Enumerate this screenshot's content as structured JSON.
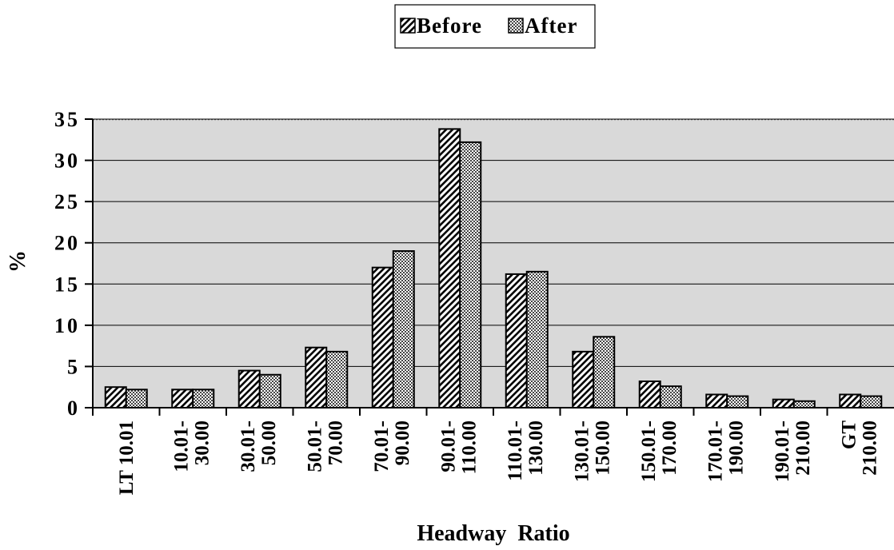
{
  "chart_data": {
    "type": "bar",
    "title": "",
    "xlabel": "Headway  Ratio",
    "ylabel": "%",
    "ylim": [
      0,
      35
    ],
    "yticks": [
      0,
      5,
      10,
      15,
      20,
      25,
      30,
      35
    ],
    "grid": true,
    "legend_position": "top-center",
    "categories": [
      [
        "LT 10.01"
      ],
      [
        "10.01-",
        "30.00"
      ],
      [
        "30.01-",
        "50.00"
      ],
      [
        "50.01-",
        "70.00"
      ],
      [
        "70.01-",
        "90.00"
      ],
      [
        "90.01-",
        "110.00"
      ],
      [
        "110.01-",
        "130.00"
      ],
      [
        "130.01-",
        "150.00"
      ],
      [
        "150.01-",
        "170.00"
      ],
      [
        "170.01-",
        "190.00"
      ],
      [
        "190.01-",
        "210.00"
      ],
      [
        "GT",
        "210.00"
      ]
    ],
    "series": [
      {
        "name": "Before",
        "pattern": "diagonal-hatch",
        "values": [
          2.5,
          2.2,
          4.5,
          7.3,
          17.0,
          33.8,
          16.2,
          6.8,
          3.2,
          1.6,
          1.0,
          1.6
        ]
      },
      {
        "name": "After",
        "pattern": "crosshatch",
        "values": [
          2.2,
          2.2,
          4.0,
          6.8,
          19.0,
          32.2,
          16.5,
          8.6,
          2.6,
          1.4,
          0.8,
          1.4
        ]
      }
    ],
    "colors": {
      "plot_background": "#d9d9d9",
      "bar_fill": "#ffffff",
      "bar_outline": "#000000"
    }
  }
}
